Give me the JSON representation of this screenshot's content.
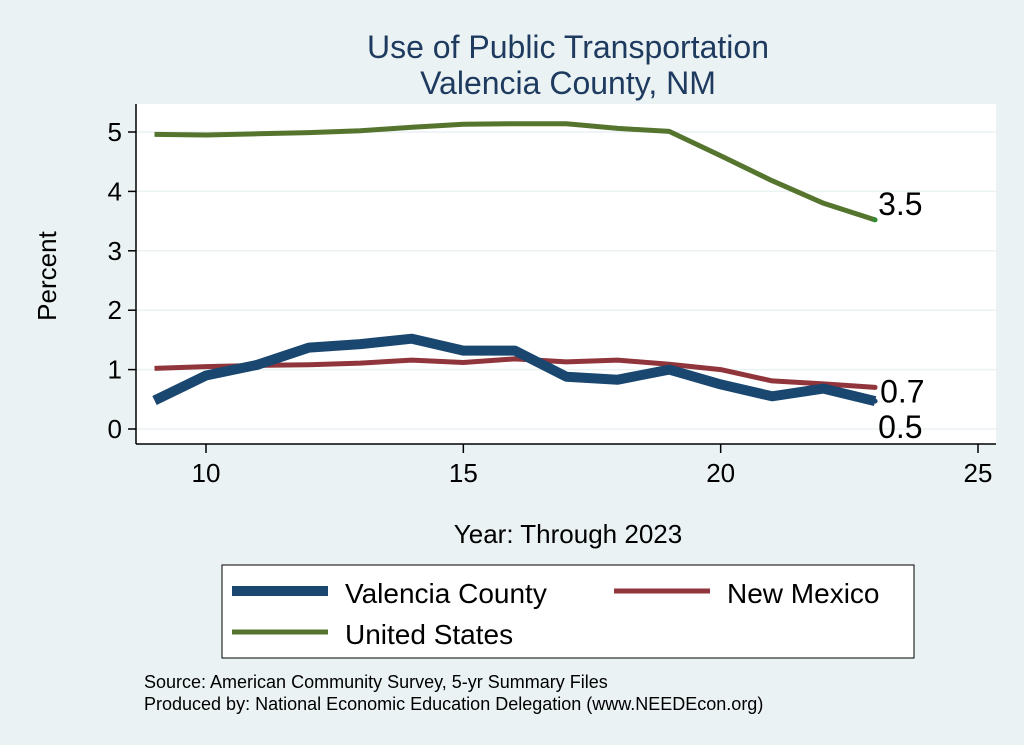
{
  "chart_data": {
    "type": "line",
    "title_line1": "Use of Public Transportation",
    "title_line2": "Valencia County, NM",
    "xlabel": "Year: Through 2023",
    "ylabel": "Percent",
    "xlim": [
      9,
      25
    ],
    "ylim": [
      0,
      5.2
    ],
    "xticks": [
      10,
      15,
      20,
      25
    ],
    "yticks": [
      0,
      1,
      2,
      3,
      4,
      5
    ],
    "grid": true,
    "legend_placement": "bottom",
    "x": [
      9,
      10,
      11,
      12,
      13,
      14,
      15,
      16,
      17,
      18,
      19,
      20,
      21,
      22,
      23
    ],
    "series": [
      {
        "name": "Valencia County",
        "color": "#1a476f",
        "values": [
          0.48,
          0.9,
          1.08,
          1.37,
          1.43,
          1.52,
          1.32,
          1.32,
          0.88,
          0.83,
          1.0,
          0.75,
          0.55,
          0.68,
          0.47
        ],
        "end_label": "0.5"
      },
      {
        "name": "New Mexico",
        "color": "#90353b",
        "values": [
          1.02,
          1.05,
          1.07,
          1.08,
          1.11,
          1.16,
          1.12,
          1.18,
          1.13,
          1.16,
          1.09,
          1.0,
          0.81,
          0.76,
          0.7
        ],
        "end_label": "0.7"
      },
      {
        "name": "United States",
        "color": "#55752f",
        "values": [
          4.96,
          4.95,
          4.97,
          4.99,
          5.02,
          5.08,
          5.13,
          5.14,
          5.14,
          5.06,
          5.01,
          4.6,
          4.18,
          3.8,
          3.52
        ],
        "end_label": "3.5"
      }
    ]
  },
  "footer": {
    "source": "Source: American Community Survey, 5-yr Summary Files",
    "produced": "Produced by: National Economic Education Delegation (www.NEEDEcon.org)"
  }
}
